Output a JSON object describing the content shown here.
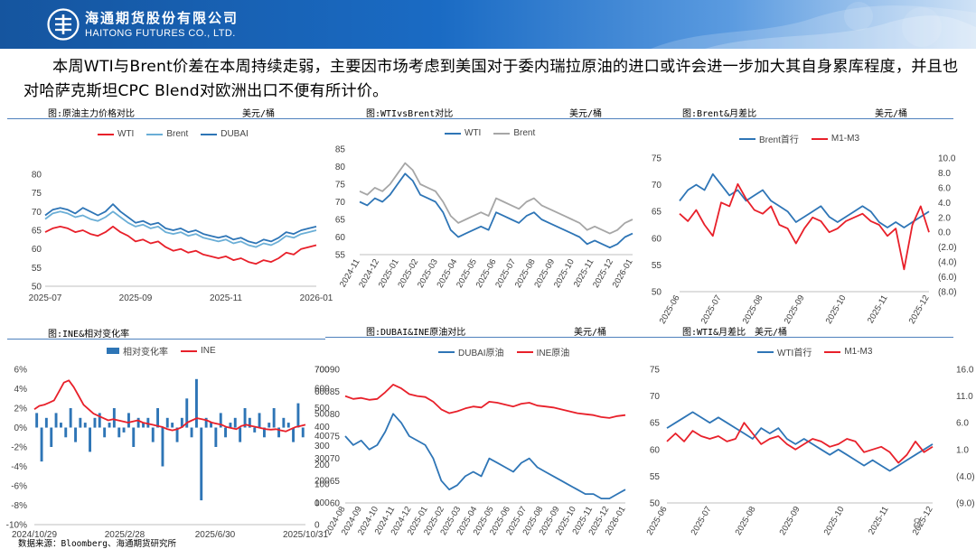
{
  "header": {
    "logo_cn": "海通期货股份有限公司",
    "logo_en": "HAITONG FUTURES CO., LTD."
  },
  "intro_text": "本周WTI与Brent价差在本周持续走弱，主要因市场考虑到美国对于委内瑞拉原油的进口或许会进一步加大其自身累库程度，并且也对哈萨克斯坦CPC Blend对欧洲出口不便有所计价。",
  "source": "数据来源：Bloomberg、海通期货研究所",
  "page_number": "8",
  "colors": {
    "banner_dark": "#15559f",
    "rule": "#4f81bd",
    "red": "#e8202a",
    "blue": "#2e75b6",
    "light_blue": "#6aaed6",
    "gray": "#a6a6a6"
  },
  "chart_data": [
    {
      "id": "p1",
      "type": "line",
      "title": "图:原油主力价格对比",
      "unit": "美元/桶",
      "series": [
        {
          "name": "WTI",
          "color": "#e8202a",
          "values": [
            64.5,
            65.5,
            66,
            65.5,
            64.5,
            65,
            64,
            63.5,
            64.5,
            66,
            64.5,
            63.5,
            62,
            62.5,
            61.5,
            62,
            60.5,
            59.5,
            60,
            59,
            59.5,
            58.5,
            58,
            57.5,
            58,
            57,
            57.5,
            56.5,
            56,
            57,
            56.5,
            57.5,
            59,
            58.5,
            60,
            60.5,
            61
          ]
        },
        {
          "name": "Brent",
          "color": "#6aaed6",
          "values": [
            68,
            69.5,
            70,
            69.5,
            68.5,
            69,
            68,
            67.5,
            68.5,
            70,
            68.5,
            67,
            66,
            66.5,
            65.5,
            66,
            64.5,
            64,
            64.5,
            63.5,
            64,
            63,
            62.5,
            62,
            62.5,
            61.5,
            62,
            61,
            60.5,
            61.5,
            61,
            62,
            63.5,
            63,
            64,
            64.5,
            65
          ]
        },
        {
          "name": "DUBAI",
          "color": "#2e75b6",
          "values": [
            69,
            70.5,
            71,
            70.5,
            69.5,
            71,
            70,
            69,
            70,
            72,
            70,
            68.5,
            67,
            67.5,
            66.5,
            67,
            65.5,
            65,
            65.5,
            64.5,
            65,
            64,
            63.5,
            63,
            63.5,
            62.5,
            63,
            62,
            61.5,
            62.5,
            62,
            63,
            64.5,
            64,
            65,
            65.5,
            66
          ]
        }
      ],
      "y_left": {
        "min": 50,
        "max": 80,
        "ticks": [
          "50",
          "55",
          "60",
          "65",
          "70",
          "75",
          "80"
        ]
      },
      "x_ticks": [
        "2025-07",
        "2025-09",
        "2025-11",
        "2026-01"
      ]
    },
    {
      "id": "p2",
      "type": "line",
      "title": "图:WTIvsBrent对比",
      "unit": "美元/桶",
      "series": [
        {
          "name": "WTI",
          "color": "#2e75b6",
          "values": [
            70,
            69,
            71,
            70,
            72,
            75,
            78,
            76,
            72,
            71,
            70,
            67,
            62,
            60,
            61,
            62,
            63,
            62,
            67,
            66,
            65,
            64,
            66,
            67,
            65,
            64,
            63,
            62,
            61,
            60,
            58,
            59,
            58,
            57,
            58,
            60,
            61
          ]
        },
        {
          "name": "Brent",
          "color": "#a6a6a6",
          "values": [
            73,
            72,
            74,
            73,
            75,
            78,
            81,
            79,
            75,
            74,
            73,
            70,
            66,
            64,
            65,
            66,
            67,
            66,
            71,
            70,
            69,
            68,
            70,
            71,
            69,
            68,
            67,
            66,
            65,
            64,
            62,
            63,
            62,
            61,
            62,
            64,
            65
          ]
        }
      ],
      "y_left": {
        "min": 55,
        "max": 85,
        "ticks": [
          "55",
          "60",
          "65",
          "70",
          "75",
          "80",
          "85"
        ]
      },
      "x_ticks": [
        "2024-11",
        "2024-12",
        "2025-01",
        "2025-02",
        "2025-03",
        "2025-04",
        "2025-05",
        "2025-06",
        "2025-07",
        "2025-08",
        "2025-09",
        "2025-10",
        "2025-11",
        "2025-12",
        "2026-01"
      ]
    },
    {
      "id": "p3",
      "type": "line",
      "title": "图:Brent&月差比",
      "unit": "美元/桶",
      "series": [
        {
          "name": "Brent首行",
          "color": "#2e75b6",
          "axis": "left",
          "values": [
            67,
            69,
            70,
            69,
            72,
            70,
            68,
            69,
            67,
            68,
            69,
            67,
            66,
            65,
            63,
            64,
            65,
            66,
            64,
            63,
            64,
            65,
            66,
            65,
            63,
            62,
            63,
            62,
            63,
            64,
            65
          ]
        },
        {
          "name": "M1-M3",
          "color": "#e8202a",
          "axis": "right",
          "values": [
            2.5,
            1.5,
            3,
            1,
            -0.5,
            4,
            3.5,
            6.5,
            4.5,
            3,
            2.5,
            3.5,
            1,
            0.5,
            -1.5,
            0.5,
            2,
            1.5,
            0,
            0.5,
            1.5,
            2,
            2.5,
            1.5,
            1,
            -0.5,
            0.5,
            -5,
            1,
            3.5,
            0
          ]
        }
      ],
      "y_left": {
        "min": 50,
        "max": 75,
        "ticks": [
          "50",
          "55",
          "60",
          "65",
          "70",
          "75"
        ]
      },
      "y_right": {
        "min": -8,
        "max": 10,
        "ticks": [
          "(8.0)",
          "(6.0)",
          "(4.0)",
          "(2.0)",
          "0.0",
          "2.0",
          "4.0",
          "6.0",
          "8.0",
          "10.0"
        ]
      },
      "x_ticks": [
        "2025-06",
        "2025-07",
        "2025-08",
        "2025-09",
        "2025-10",
        "2025-11",
        "2025-12"
      ]
    },
    {
      "id": "p4",
      "type": "bar",
      "title": "图:INE&相对变化率",
      "unit": "",
      "series": [
        {
          "name": "相对变化率",
          "color": "#2e75b6",
          "axis": "left",
          "kind": "bar",
          "values": [
            1.5,
            -3.5,
            1,
            -2,
            1.5,
            0.5,
            -1,
            2,
            -1.5,
            1,
            0.5,
            -2.5,
            1,
            1.5,
            -1,
            0.5,
            2,
            -1,
            -0.5,
            1.5,
            -2,
            1,
            0.5,
            1,
            -1.5,
            2,
            -4,
            1,
            0.5,
            -1.5,
            1,
            3,
            -1,
            5,
            -7.5,
            1,
            0.5,
            -2,
            1.5,
            -1,
            0.5,
            1,
            -1.5,
            2,
            1,
            -0.5,
            1.5,
            -1,
            0.5,
            2,
            -1,
            1,
            0.5,
            -1.5,
            2.5,
            -1
          ]
        },
        {
          "name": "INE",
          "color": "#e8202a",
          "axis": "right",
          "kind": "line",
          "values": [
            520,
            535,
            540,
            550,
            560,
            600,
            640,
            650,
            620,
            580,
            540,
            520,
            500,
            490,
            480,
            470,
            475,
            470,
            465,
            460,
            465,
            470,
            460,
            455,
            450,
            445,
            440,
            430,
            425,
            430,
            440,
            460,
            470,
            480,
            475,
            470,
            460,
            455,
            450,
            440,
            435,
            430,
            445,
            450,
            445,
            440,
            435,
            430,
            428,
            430,
            425,
            420,
            430,
            440,
            445,
            450
          ]
        }
      ],
      "y_left": {
        "min": -10,
        "max": 6,
        "ticks": [
          "-10%",
          "-8%",
          "-6%",
          "-4%",
          "-2%",
          "0%",
          "2%",
          "4%",
          "6%"
        ]
      },
      "y_right": {
        "min": 0,
        "max": 700,
        "ticks": [
          "0",
          "100",
          "200",
          "300",
          "400",
          "500",
          "600",
          "700"
        ]
      },
      "x_ticks": [
        "2024/10/29",
        "2025/2/28",
        "2025/6/30",
        "2025/10/31"
      ]
    },
    {
      "id": "p5",
      "type": "line",
      "title": "图:DUBAI&INE原油对比",
      "unit": "美元/桶",
      "series": [
        {
          "name": "DUBAI原油",
          "color": "#2e75b6",
          "axis": "left",
          "values": [
            75,
            73,
            74,
            72,
            73,
            76,
            80,
            78,
            75,
            74,
            73,
            70,
            65,
            63,
            64,
            66,
            67,
            66,
            70,
            69,
            68,
            67,
            69,
            70,
            68,
            67,
            66,
            65,
            64,
            63,
            62,
            62,
            61,
            61,
            62,
            63
          ]
        },
        {
          "name": "INE原油",
          "color": "#e8202a",
          "axis": "right",
          "values": [
            560,
            545,
            550,
            540,
            545,
            580,
            620,
            600,
            570,
            560,
            555,
            530,
            490,
            470,
            480,
            495,
            505,
            500,
            530,
            525,
            515,
            505,
            520,
            525,
            510,
            505,
            500,
            490,
            480,
            470,
            465,
            460,
            450,
            445,
            455,
            460
          ]
        }
      ],
      "y_left": {
        "min": 60,
        "max": 90,
        "ticks": [
          "60",
          "65",
          "70",
          "75",
          "80",
          "85",
          "90"
        ]
      },
      "y_right": {
        "min": 0,
        "max": 700,
        "ticks": [
          "0",
          "100",
          "200",
          "300",
          "400",
          "500",
          "600",
          "700"
        ]
      },
      "x_ticks": [
        "2024-08",
        "2024-09",
        "2024-10",
        "2024-11",
        "2024-12",
        "2025-01",
        "2025-02",
        "2025-03",
        "2025-04",
        "2025-05",
        "2025-06",
        "2025-07",
        "2025-08",
        "2025-09",
        "2025-10",
        "2025-11",
        "2025-12",
        "2026-01"
      ]
    },
    {
      "id": "p6",
      "type": "line",
      "title": "图:WTI&月差比",
      "unit": "美元/桶",
      "series": [
        {
          "name": "WTI首行",
          "color": "#2e75b6",
          "axis": "left",
          "values": [
            64,
            65,
            66,
            67,
            66,
            65,
            66,
            65,
            64,
            63,
            62,
            64,
            63,
            64,
            62,
            61,
            62,
            61,
            60,
            59,
            60,
            59,
            58,
            57,
            58,
            57,
            56,
            57,
            58,
            59,
            60,
            61
          ]
        },
        {
          "name": "M1-M3",
          "color": "#e8202a",
          "axis": "right",
          "values": [
            2.5,
            4,
            2.5,
            4.5,
            3.5,
            3,
            3.5,
            2.5,
            3,
            6,
            4,
            2,
            3,
            3.5,
            2,
            1,
            2,
            3,
            2.5,
            1.5,
            2,
            3,
            2.5,
            0.5,
            1,
            1.5,
            0.5,
            -1.5,
            0,
            2.5,
            0.5,
            1.5
          ]
        }
      ],
      "y_left": {
        "min": 50,
        "max": 75,
        "ticks": [
          "50",
          "55",
          "60",
          "65",
          "70",
          "75"
        ]
      },
      "y_right": {
        "min": -9,
        "max": 16,
        "ticks": [
          "(9.0)",
          "(4.0)",
          "1.0",
          "6.0",
          "11.0",
          "16.0"
        ]
      },
      "x_ticks": [
        "2025-06",
        "2025-07",
        "2025-08",
        "2025-09",
        "2025-10",
        "2025-11",
        "2025-12"
      ]
    }
  ]
}
